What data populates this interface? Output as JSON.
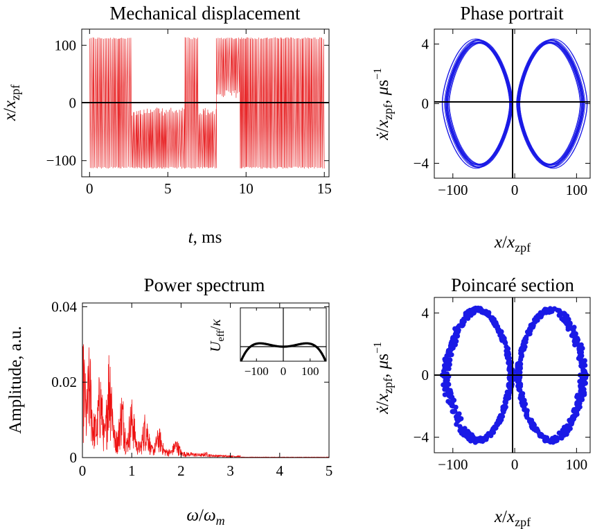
{
  "colors": {
    "trace": "#e8282a",
    "spectrum": "#ee1111",
    "phase": "#1a1ae6",
    "axis": "#000000"
  },
  "chart_data": [
    {
      "id": "displacement",
      "type": "line",
      "title": "Mechanical displacement",
      "xlabel": "t, ms",
      "ylabel": "x/x_zpf",
      "xlim": [
        -0.5,
        15.3
      ],
      "ylim": [
        -128,
        128
      ],
      "xticks": [
        "0",
        "5",
        "10",
        "15"
      ],
      "xtick_values": [
        0,
        5,
        10,
        15
      ],
      "yticks": [
        "100",
        "0",
        "−100"
      ],
      "ytick_values": [
        100,
        0,
        -100
      ],
      "amplitude": 114,
      "description_of_series": "fast oscillation switching between wells",
      "regimes": [
        {
          "t": [
            0,
            2.7
          ],
          "mode": "double-well"
        },
        {
          "t": [
            2.7,
            6.1
          ],
          "mode": "lower-well"
        },
        {
          "t": [
            6.1,
            7.0
          ],
          "mode": "double-well"
        },
        {
          "t": [
            7.0,
            8.1
          ],
          "mode": "lower-well"
        },
        {
          "t": [
            8.1,
            9.6
          ],
          "mode": "upper-well"
        },
        {
          "t": [
            9.6,
            15.0
          ],
          "mode": "double-well"
        }
      ],
      "zero_line": true
    },
    {
      "id": "phase_portrait",
      "type": "line",
      "title": "Phase portrait",
      "xlabel": "x/x_zpf",
      "ylabel": "ẋ/x_zpf, μs⁻¹",
      "xlim": [
        -130,
        122
      ],
      "ylim": [
        -5,
        5
      ],
      "xticks": [
        "−100",
        "0",
        "100"
      ],
      "xtick_values": [
        -100,
        0,
        100
      ],
      "yticks": [
        "4",
        "0",
        "−4"
      ],
      "ytick_values": [
        4,
        0,
        -4
      ],
      "orbit": {
        "x_peak": 114,
        "v_peak": 4.3,
        "lobe_centre_x": 62
      },
      "zero_lines": true
    },
    {
      "id": "power_spectrum",
      "type": "line",
      "title": "Power spectrum",
      "xlabel": "ω/ω_m",
      "ylabel": "Amplitude, a.u.",
      "xlim": [
        0,
        5
      ],
      "ylim": [
        0,
        0.041
      ],
      "xticks": [
        "0",
        "1",
        "2",
        "3",
        "4",
        "5"
      ],
      "xtick_values": [
        0,
        1,
        2,
        3,
        4,
        5
      ],
      "yticks": [
        "0.04",
        "0.02",
        "0"
      ],
      "ytick_values": [
        0.04,
        0.02,
        0
      ],
      "peaks": [
        {
          "x": 0.02,
          "y": 0.031
        },
        {
          "x": 0.14,
          "y": 0.03
        },
        {
          "x": 0.36,
          "y": 0.024
        },
        {
          "x": 0.55,
          "y": 0.0315
        },
        {
          "x": 0.8,
          "y": 0.018
        },
        {
          "x": 1.0,
          "y": 0.016
        },
        {
          "x": 1.28,
          "y": 0.0125
        },
        {
          "x": 1.55,
          "y": 0.008
        },
        {
          "x": 1.9,
          "y": 0.005
        },
        {
          "x": 2.5,
          "y": 0.0015
        }
      ],
      "inset": {
        "ylabel": "U_eff/κ",
        "xlim": [
          -160,
          160
        ],
        "xticks": [
          "−100",
          "0",
          "100"
        ],
        "xtick_values": [
          -100,
          0,
          100
        ],
        "zero_lines": true
      }
    },
    {
      "id": "poincare_section",
      "type": "scatter",
      "title": "Poincaré section",
      "xlabel": "x/x_zpf",
      "ylabel": "ẋ/x_zpf, μs⁻¹",
      "xlim": [
        -130,
        122
      ],
      "ylim": [
        -5,
        5
      ],
      "xticks": [
        "−100",
        "0",
        "100"
      ],
      "xtick_values": [
        -100,
        0,
        100
      ],
      "yticks": [
        "4",
        "0",
        "−4"
      ],
      "ytick_values": [
        4,
        0,
        -4
      ],
      "orbit": {
        "x_peak": 114,
        "v_peak": 4.3,
        "lobe_centre_x": 62
      },
      "zero_lines": true
    }
  ]
}
